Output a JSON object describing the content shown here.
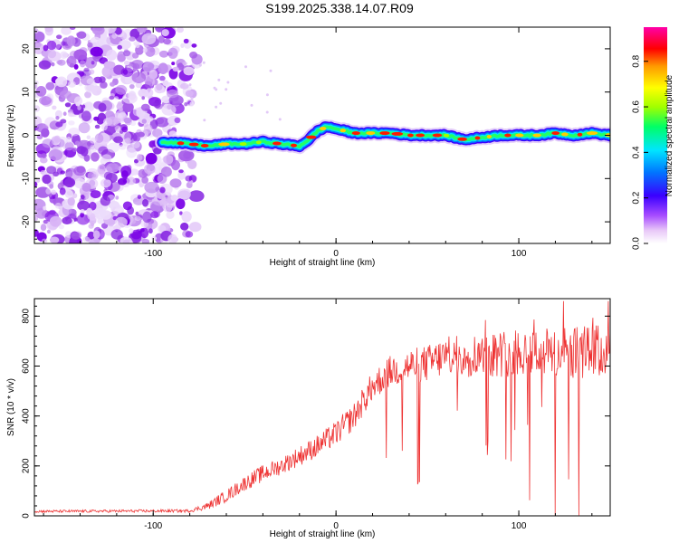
{
  "title": "S199.2025.338.14.07.R09",
  "chart_data": [
    {
      "type": "heatmap",
      "name": "spectrogram",
      "xlabel": "Height of straight line (km)",
      "ylabel": "Frequency (Hz)",
      "xlim": [
        -165,
        150
      ],
      "ylim": [
        -25,
        25
      ],
      "x_ticks": [
        -100,
        0,
        100
      ],
      "y_ticks": [
        20,
        10,
        0,
        -10,
        -20
      ],
      "colorbar": {
        "label": "Normalized spectral amplitude",
        "range": [
          0,
          0.95
        ],
        "ticks": [
          0.0,
          0.2,
          0.4,
          0.6,
          0.8
        ],
        "tick_labels": [
          "0.0",
          "0.2",
          "0.4",
          "0.6",
          "0.8"
        ],
        "colors": [
          "#ffffff",
          "#e8c8f8",
          "#a64bff",
          "#3a00ff",
          "#0077ff",
          "#00e5ff",
          "#00ff66",
          "#a0ff00",
          "#ffff00",
          "#ff9900",
          "#ff0000",
          "#ff00a8"
        ]
      },
      "noise_region_x": [
        -165,
        -80
      ],
      "ridge": {
        "x": [
          -95,
          -80,
          -70,
          -60,
          -50,
          -40,
          -30,
          -20,
          -15,
          -10,
          -5,
          0,
          10,
          20,
          30,
          40,
          50,
          60,
          70,
          80,
          90,
          100,
          110,
          120,
          130,
          140,
          150
        ],
        "freq": [
          -1.5,
          -2.0,
          -2.5,
          -2.0,
          -2.0,
          -1.5,
          -2.0,
          -2.5,
          -1.0,
          1.0,
          2.0,
          1.5,
          0.5,
          0.5,
          0.5,
          0.0,
          0.0,
          0.0,
          -1.0,
          -0.5,
          0.0,
          0.0,
          0.0,
          0.5,
          0.0,
          0.5,
          0.0
        ]
      }
    },
    {
      "type": "line",
      "name": "snr",
      "xlabel": "Height of straight line (km)",
      "ylabel": "SNR (10 * v/v)",
      "xlim": [
        -165,
        150
      ],
      "ylim": [
        0,
        870
      ],
      "x_ticks": [
        -100,
        0,
        100
      ],
      "y_ticks": [
        0,
        200,
        400,
        600,
        800
      ],
      "color": "#ee3333",
      "envelope": {
        "x": [
          -165,
          -80,
          -70,
          -60,
          -50,
          -40,
          -30,
          -20,
          -10,
          0,
          10,
          20,
          30,
          40,
          50,
          60,
          70,
          80,
          90,
          100,
          110,
          120,
          130,
          140,
          150
        ],
        "mean": [
          18,
          20,
          40,
          80,
          130,
          170,
          200,
          240,
          280,
          330,
          400,
          520,
          580,
          600,
          610,
          640,
          640,
          650,
          650,
          660,
          660,
          650,
          650,
          660,
          650
        ],
        "spread": [
          10,
          12,
          30,
          50,
          60,
          70,
          70,
          80,
          90,
          100,
          110,
          120,
          130,
          140,
          150,
          160,
          170,
          180,
          190,
          200,
          200,
          210,
          210,
          220,
          220
        ]
      }
    }
  ]
}
